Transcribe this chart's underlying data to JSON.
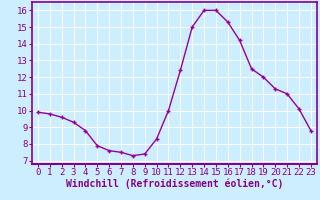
{
  "x": [
    0,
    1,
    2,
    3,
    4,
    5,
    6,
    7,
    8,
    9,
    10,
    11,
    12,
    13,
    14,
    15,
    16,
    17,
    18,
    19,
    20,
    21,
    22,
    23
  ],
  "y": [
    9.9,
    9.8,
    9.6,
    9.3,
    8.8,
    7.9,
    7.6,
    7.5,
    7.3,
    7.4,
    8.3,
    10.0,
    12.4,
    15.0,
    16.0,
    16.0,
    15.3,
    14.2,
    12.5,
    12.0,
    11.3,
    11.0,
    10.1,
    8.8
  ],
  "line_color": "#990099",
  "marker": "+",
  "bg_color": "#cceeff",
  "grid_color": "#ffffff",
  "xlabel": "Windchill (Refroidissement éolien,°C)",
  "xlim": [
    -0.5,
    23.5
  ],
  "ylim": [
    6.8,
    16.5
  ],
  "yticks": [
    7,
    8,
    9,
    10,
    11,
    12,
    13,
    14,
    15,
    16
  ],
  "xticks": [
    0,
    1,
    2,
    3,
    4,
    5,
    6,
    7,
    8,
    9,
    10,
    11,
    12,
    13,
    14,
    15,
    16,
    17,
    18,
    19,
    20,
    21,
    22,
    23
  ],
  "xlabel_fontsize": 7,
  "tick_fontsize": 6.5,
  "line_width": 1.0,
  "marker_size": 3.5,
  "spine_color": "#880088",
  "label_color": "#880088"
}
